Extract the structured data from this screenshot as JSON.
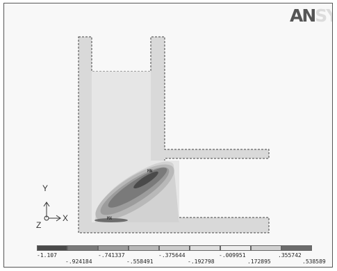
{
  "logo": {
    "main": "AN",
    "tail": "SYS"
  },
  "triad": {
    "y": "Y",
    "x": "X",
    "z": "Z"
  },
  "markers": {
    "min": "MN",
    "max": "MX"
  },
  "colors": {
    "frame_bg": "#f8f8f8",
    "geometry_fill": "#d9d9d9",
    "dashed_outline": "#444444",
    "band_1": "#4a4a4a",
    "band_2": "#7a7a7a",
    "band_3": "#9c9c9c",
    "band_4": "#b8b8b8",
    "band_5": "#cccccc",
    "band_6": "#dedede",
    "band_7": "#ececec",
    "band_8": "#d0d0d0",
    "band_9": "#6c6c6c"
  },
  "legend": {
    "swatches": [
      "#4a4a4a",
      "#7a7a7a",
      "#9c9c9c",
      "#b8b8b8",
      "#cccccc",
      "#dedede",
      "#ececec",
      "#d0d0d0",
      "#6c6c6c"
    ],
    "top_labels": [
      "-1.107",
      "-.741337",
      "-.375644",
      "-.009951",
      ".355742"
    ],
    "bottom_labels": [
      "-.924184",
      "-.558491",
      "-.192798",
      ".172895",
      ".538589"
    ]
  }
}
